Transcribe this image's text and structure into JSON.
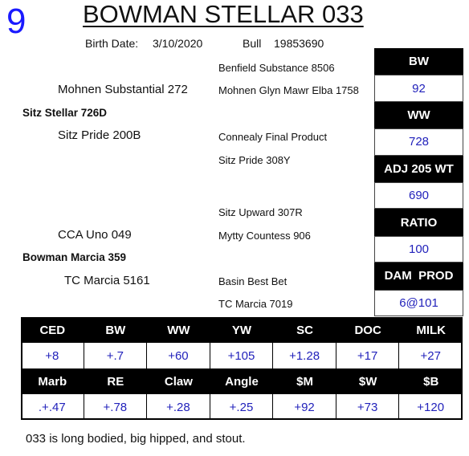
{
  "header": {
    "lot": "9",
    "title": "BOWMAN STELLAR 033",
    "birth_date_label": "Birth Date:",
    "birth_date": "3/10/2020",
    "sex": "Bull",
    "registration": "19853690"
  },
  "pedigree": [
    {
      "name": "Benfield Substance 8506",
      "bold": false
    },
    {
      "name": "Mohnen Substantial 272",
      "bold": false
    },
    {
      "name": "Mohnen Glyn Mawr Elba 1758",
      "bold": false
    },
    {
      "name": "Sitz Stellar 726D",
      "bold": true
    },
    {
      "name": "Sitz Pride 200B",
      "bold": false
    },
    {
      "name": "Connealy Final Product",
      "bold": false
    },
    {
      "name": "Sitz Pride 308Y",
      "bold": false
    },
    {
      "name": "Sitz Upward 307R",
      "bold": false
    },
    {
      "name": "CCA Uno 049",
      "bold": false
    },
    {
      "name": "Mytty Countess 906",
      "bold": false
    },
    {
      "name": "Bowman Marcia 359",
      "bold": true
    },
    {
      "name": "TC Marcia 5161",
      "bold": false
    },
    {
      "name": "Basin Best Bet",
      "bold": false
    },
    {
      "name": "TC Marcia 7019",
      "bold": false
    }
  ],
  "performance": [
    {
      "label": "BW",
      "value": "92"
    },
    {
      "label": "WW",
      "value": "728"
    },
    {
      "label": "ADJ 205 WT",
      "value": "690"
    },
    {
      "label": "RATIO",
      "value": "100"
    },
    {
      "label": "DAM  PROD",
      "value": "6@101"
    }
  ],
  "epds": [
    {
      "labels": [
        "CED",
        "BW",
        "WW",
        "YW",
        "SC",
        "DOC",
        "MILK"
      ],
      "values": [
        "+8",
        "+.7",
        "+60",
        "+105",
        "+1.28",
        "+17",
        "+27"
      ]
    },
    {
      "labels": [
        "Marb",
        "RE",
        "Claw",
        "Angle",
        "$M",
        "$W",
        "$B"
      ],
      "values": [
        ".+.47",
        "+.78",
        "+.28",
        "+.25",
        "+92",
        "+73",
        "+120"
      ]
    }
  ],
  "comment": "033 is long bodied, big hipped, and stout."
}
